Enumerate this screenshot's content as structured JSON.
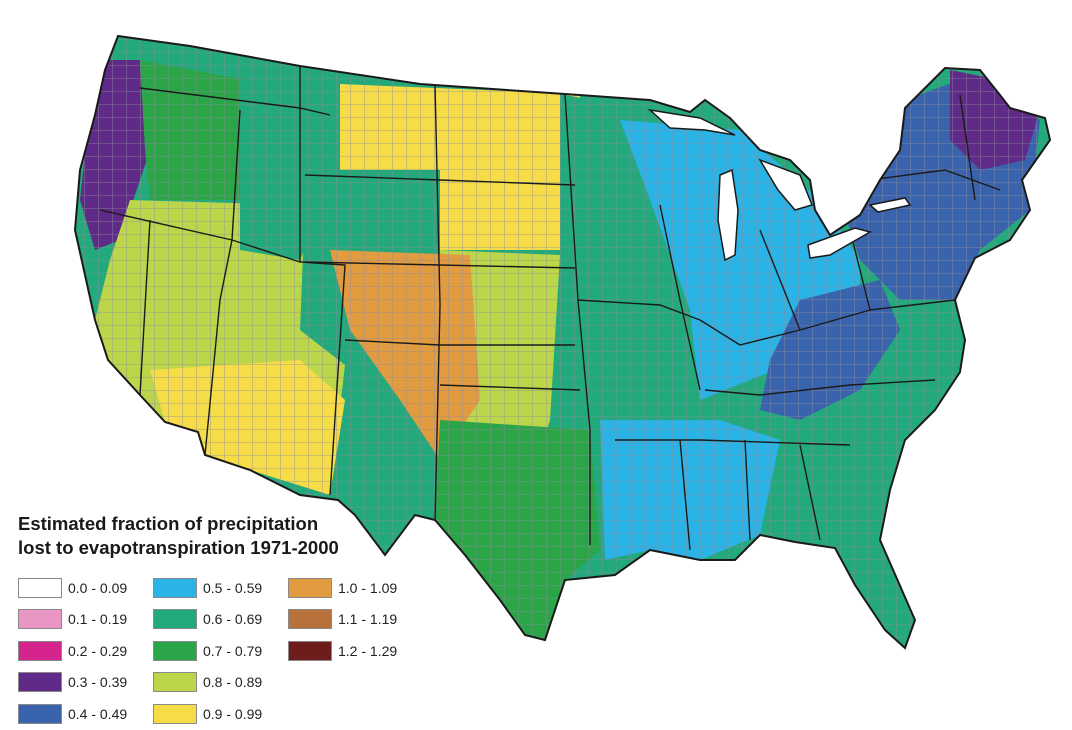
{
  "map": {
    "subject": "Contiguous United States, county-level choropleth",
    "regions": [
      {
        "name": "pacific-coast",
        "class": "0.3 - 0.39"
      },
      {
        "name": "northwest-interior",
        "class": "0.7 - 0.79"
      },
      {
        "name": "great-basin",
        "class": "0.8 - 0.89"
      },
      {
        "name": "northern-rockies",
        "class": "0.6 - 0.69"
      },
      {
        "name": "northern-plains",
        "class": "0.9 - 0.99"
      },
      {
        "name": "central-plains",
        "class": "0.8 - 0.89"
      },
      {
        "name": "front-range",
        "class": "1.0 - 1.09"
      },
      {
        "name": "southwest-desert",
        "class": "0.9 - 0.99"
      },
      {
        "name": "texas",
        "class": "0.7 - 0.79"
      },
      {
        "name": "midwest",
        "class": "0.6 - 0.69"
      },
      {
        "name": "great-lakes-ohio-valley",
        "class": "0.5 - 0.59"
      },
      {
        "name": "southeast",
        "class": "0.6 - 0.69"
      },
      {
        "name": "lower-mississippi",
        "class": "0.5 - 0.59"
      },
      {
        "name": "appalachians",
        "class": "0.4 - 0.49"
      },
      {
        "name": "northeast",
        "class": "0.4 - 0.49"
      },
      {
        "name": "maine-highlands",
        "class": "0.3 - 0.39"
      }
    ]
  },
  "legend": {
    "title_line1": "Estimated fraction of precipitation",
    "title_line2": "lost to evapotranspiration 1971-2000",
    "items": [
      {
        "label": "0.0 - 0.09",
        "color": "#ffffff"
      },
      {
        "label": "0.1 - 0.19",
        "color": "#e996c4"
      },
      {
        "label": "0.2 - 0.29",
        "color": "#d6248f"
      },
      {
        "label": "0.3 - 0.39",
        "color": "#5f2a88"
      },
      {
        "label": "0.4 - 0.49",
        "color": "#3a63ad"
      },
      {
        "label": "0.5 - 0.59",
        "color": "#2ab3e6"
      },
      {
        "label": "0.6 - 0.69",
        "color": "#22a97c"
      },
      {
        "label": "0.7 - 0.79",
        "color": "#2aa547"
      },
      {
        "label": "0.8 - 0.89",
        "color": "#bcd64a"
      },
      {
        "label": "0.9 - 0.99",
        "color": "#f6dc46"
      },
      {
        "label": "1.0 - 1.09",
        "color": "#e39b3f"
      },
      {
        "label": "1.1 - 1.19",
        "color": "#b8713a"
      },
      {
        "label": "1.2 - 1.29",
        "color": "#6e1c1c"
      }
    ]
  }
}
